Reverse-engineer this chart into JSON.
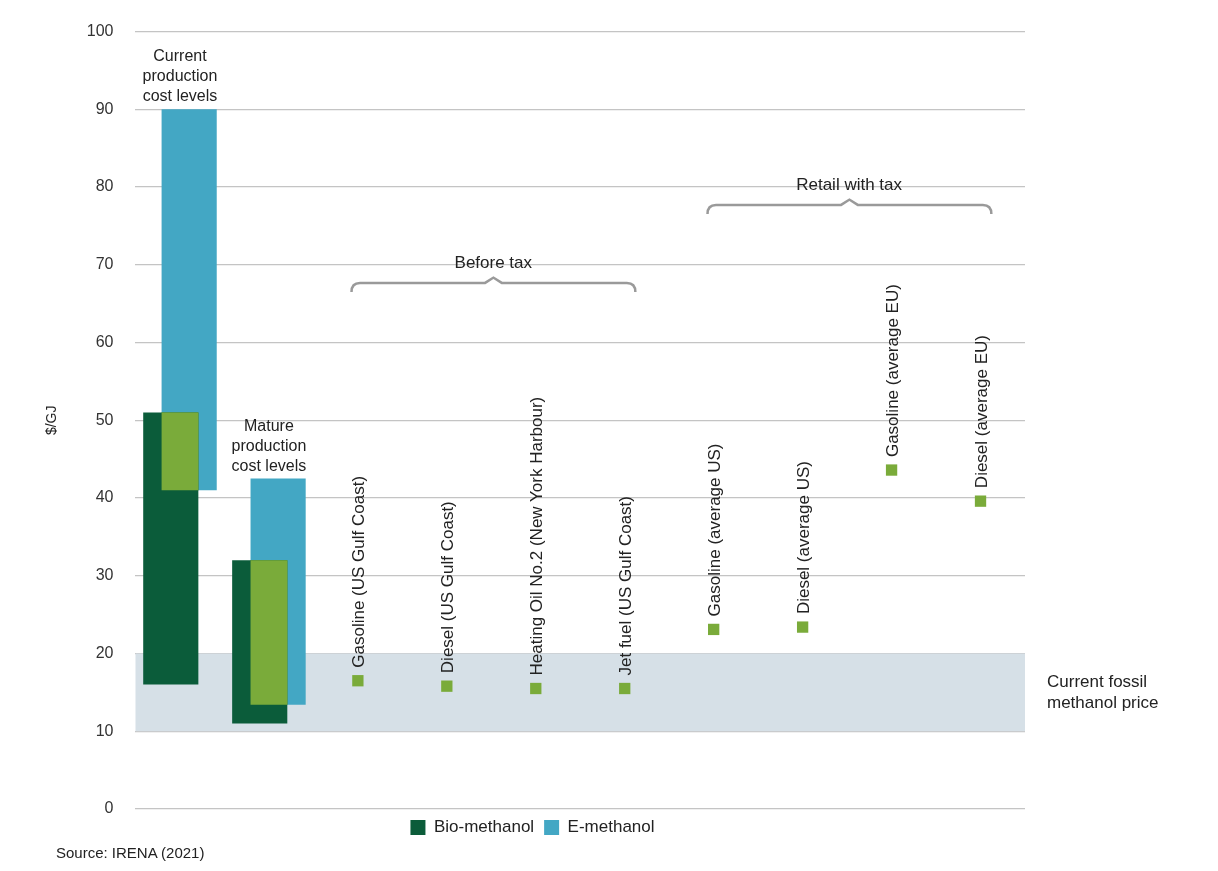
{
  "chart_data": {
    "type": "bar",
    "ylabel": "$/GJ",
    "categories": [
      "Current production cost levels",
      "Mature production cost levels",
      "Gasoline (US Gulf Coast)",
      "Diesel (US Gulf Coast)",
      "Heating Oil No.2 (New York Harbour)",
      "Jet fuel (US Gulf Coast)",
      "Gasoline (average US)",
      "Diesel (average US)",
      "Gasoline (average EU)",
      "Diesel (average EU)"
    ],
    "series": [
      {
        "name": "Bio-methanol",
        "type": "bar",
        "color": "#0b5c3a",
        "base": [
          16,
          11,
          null,
          null,
          null,
          null,
          null,
          null,
          null,
          null
        ],
        "values": [
          35,
          21,
          null,
          null,
          null,
          null,
          null,
          null,
          null,
          null
        ]
      },
      {
        "type": "bar",
        "color": "#7aab3a",
        "base": [
          41,
          13.4,
          null,
          null,
          null,
          null,
          null,
          null,
          null,
          null
        ],
        "values": [
          10,
          18.6,
          null,
          null,
          null,
          null,
          null,
          null,
          null,
          null
        ]
      },
      {
        "name": "E-methanol",
        "type": "bar",
        "color": "#43a7c4",
        "base": [
          41,
          13.4,
          null,
          null,
          null,
          null,
          null,
          null,
          null,
          null
        ],
        "values": [
          49,
          29.1,
          null,
          null,
          null,
          null,
          null,
          null,
          null,
          null
        ]
      },
      {
        "type": "scatter",
        "color": "#7aab3a",
        "x": [
          "Gasoline (US Gulf Coast)",
          "Diesel (US Gulf Coast)",
          "Heating Oil No.2 (New York Harbour)",
          "Jet fuel (US Gulf Coast)",
          "Gasoline (average US)",
          "Diesel (average US)",
          "Gasoline (average EU)",
          "Diesel (average EU)"
        ],
        "values": [
          16.5,
          15.8,
          15.5,
          15.5,
          23.1,
          23.4,
          43.6,
          39.6
        ]
      }
    ],
    "marker": "square",
    "ylim": [
      0,
      100
    ],
    "yticks": [
      0,
      10,
      20,
      30,
      40,
      50,
      60,
      70,
      80,
      90,
      100
    ],
    "grid": "y",
    "legend": "bottom",
    "bands": [
      {
        "axis": "y",
        "from": 10,
        "to": 20,
        "label": "Current fossil methanol price",
        "color": "#d6e0e7"
      }
    ],
    "annotations": [
      "Before tax",
      "Retail with tax",
      "Source: IRENA (2021)"
    ]
  }
}
